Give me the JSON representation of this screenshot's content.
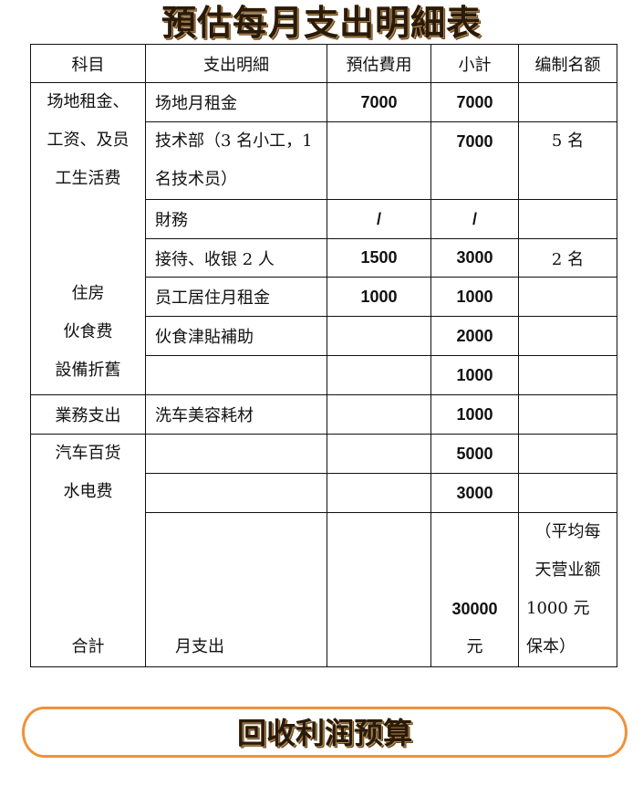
{
  "title": "預估每月支出明細表",
  "headers": [
    "科目",
    "支出明細",
    "預估費用",
    "小計",
    "编制名额"
  ],
  "category_1": [
    "场地租金、",
    "工资、及员",
    "工生活费",
    "",
    "",
    "住房",
    "伙食费",
    "設備折舊"
  ],
  "category_2": "業務支出",
  "category_3": [
    "汽车百货",
    "水电费",
    "合計"
  ],
  "rows": [
    {
      "detail": "场地月租金",
      "estimate": "7000",
      "subtotal": "7000",
      "quota": ""
    },
    {
      "detail": "技术部（3 名小工，1 名技术员）",
      "estimate": "",
      "subtotal": "7000",
      "quota": "5 名"
    },
    {
      "detail": "財務",
      "estimate": "/",
      "subtotal": "/",
      "quota": ""
    },
    {
      "detail": "接待、收银 2 人",
      "estimate": "1500",
      "subtotal": "3000",
      "quota": "2 名"
    },
    {
      "detail": "员工居住月租金",
      "estimate": "1000",
      "subtotal": "1000",
      "quota": ""
    },
    {
      "detail": "伙食津貼補助",
      "estimate": "",
      "subtotal": "2000",
      "quota": ""
    },
    {
      "detail": "",
      "estimate": "",
      "subtotal": "1000",
      "quota": ""
    },
    {
      "detail": "洗车美容耗材",
      "estimate": "",
      "subtotal": "1000",
      "quota": ""
    },
    {
      "detail": "",
      "estimate": "",
      "subtotal": "5000",
      "quota": ""
    },
    {
      "detail": "",
      "estimate": "",
      "subtotal": "3000",
      "quota": ""
    }
  ],
  "total": {
    "detail": "月支出",
    "subtotal_lines": [
      "30000",
      "元"
    ],
    "quota_lines": [
      "（平均每",
      "天营业额",
      "1000 元",
      "保本）"
    ]
  },
  "banner": "回收利润预算",
  "colors": {
    "banner_border": "#f0923a",
    "title_text": "#2a1a08"
  }
}
